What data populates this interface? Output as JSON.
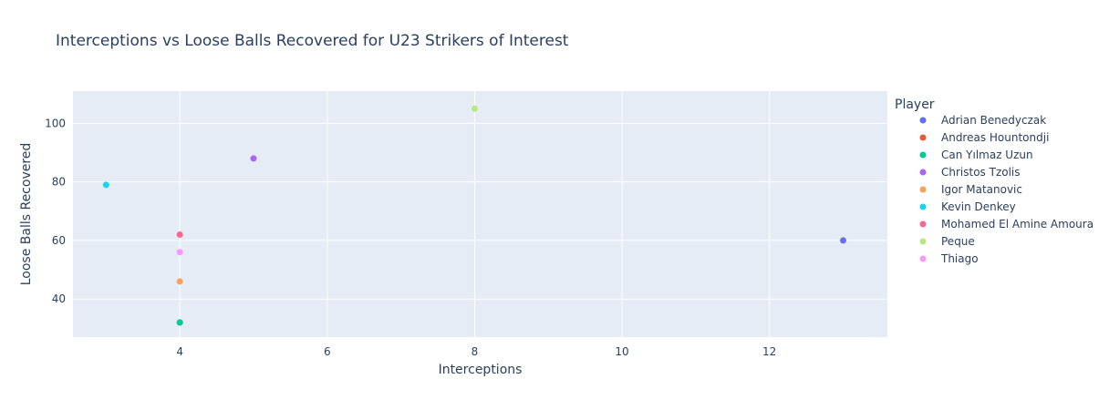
{
  "chart_data": {
    "type": "scatter",
    "title": "Interceptions vs Loose Balls Recovered for U23 Strikers of Interest",
    "xlabel": "Interceptions",
    "ylabel": "Loose Balls Recovered",
    "xlim": [
      2.55,
      13.6
    ],
    "ylim": [
      27,
      111
    ],
    "xticks": [
      4,
      6,
      8,
      10,
      12
    ],
    "yticks": [
      40,
      60,
      80,
      100
    ],
    "grid": true,
    "legend_title": "Player",
    "legend_position": "right",
    "plot_bg": "#e5ecf6",
    "series": [
      {
        "name": "Adrian Benedyczak",
        "color": "#636efa",
        "points": [
          {
            "x": 13,
            "y": 60
          }
        ]
      },
      {
        "name": "Andreas Hountondji",
        "color": "#ef553b",
        "points": [
          {
            "x": 4,
            "y": 32
          }
        ]
      },
      {
        "name": "Can Yılmaz Uzun",
        "color": "#00cc96",
        "points": [
          {
            "x": 4,
            "y": 32
          }
        ]
      },
      {
        "name": "Christos Tzolis",
        "color": "#ab63fa",
        "points": [
          {
            "x": 5,
            "y": 88
          }
        ]
      },
      {
        "name": "Igor Matanovic",
        "color": "#ffa15a",
        "points": [
          {
            "x": 4,
            "y": 46
          }
        ]
      },
      {
        "name": "Kevin Denkey",
        "color": "#19d3f3",
        "points": [
          {
            "x": 3,
            "y": 79
          }
        ]
      },
      {
        "name": "Mohamed El Amine Amoura",
        "color": "#ff6692",
        "points": [
          {
            "x": 4,
            "y": 62
          }
        ]
      },
      {
        "name": "Peque",
        "color": "#b6e880",
        "points": [
          {
            "x": 8,
            "y": 105
          }
        ]
      },
      {
        "name": "Thiago",
        "color": "#ff97ff",
        "points": [
          {
            "x": 4,
            "y": 56
          }
        ]
      }
    ]
  }
}
